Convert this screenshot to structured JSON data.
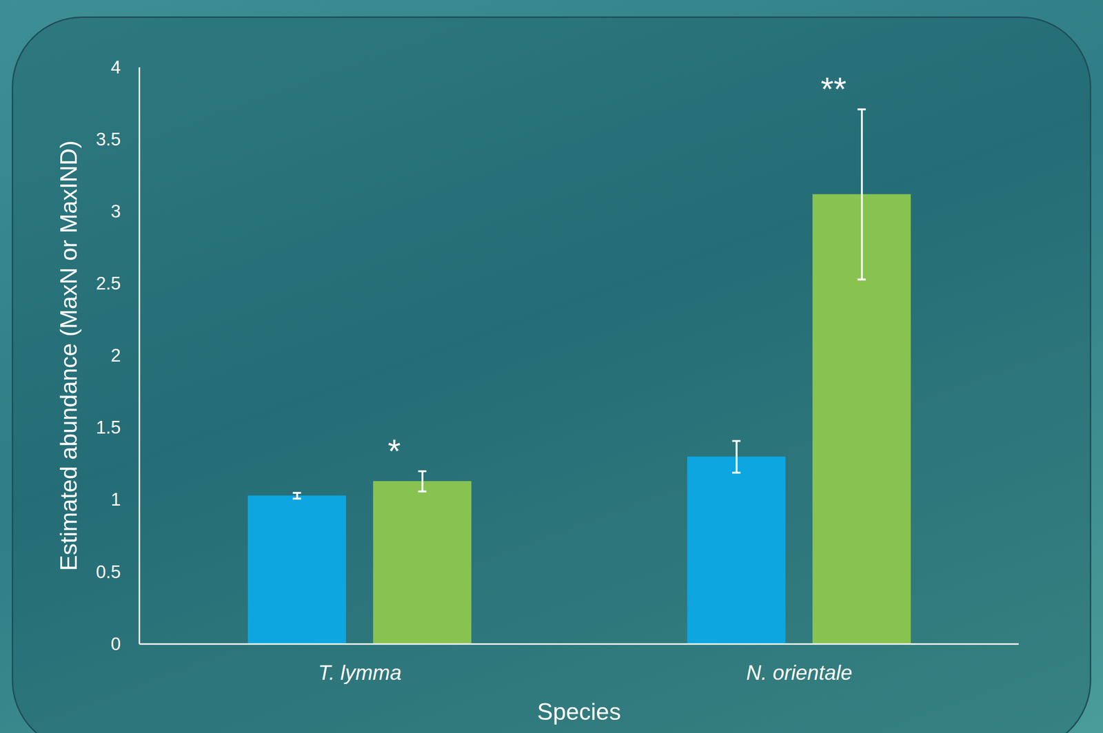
{
  "chart_data": {
    "type": "bar",
    "x_label": "Species",
    "y_label": "Estimated abundance (MaxN or MaxIND)",
    "categories": [
      "T. lymma",
      "N. orientale"
    ],
    "series": [
      {
        "color": "#0ea6e1",
        "values": [
          1.03,
          1.3
        ],
        "errors": [
          0.02,
          0.11
        ],
        "annotations": [
          null,
          null
        ]
      },
      {
        "color": "#88c352",
        "values": [
          1.13,
          3.12
        ],
        "errors": [
          0.07,
          0.59
        ],
        "annotations": [
          "*",
          "**"
        ]
      }
    ],
    "ylim": [
      0,
      4
    ],
    "yticks": [
      0,
      0.5,
      1,
      1.5,
      2,
      2.5,
      3,
      3.5,
      4
    ],
    "grid": false
  }
}
